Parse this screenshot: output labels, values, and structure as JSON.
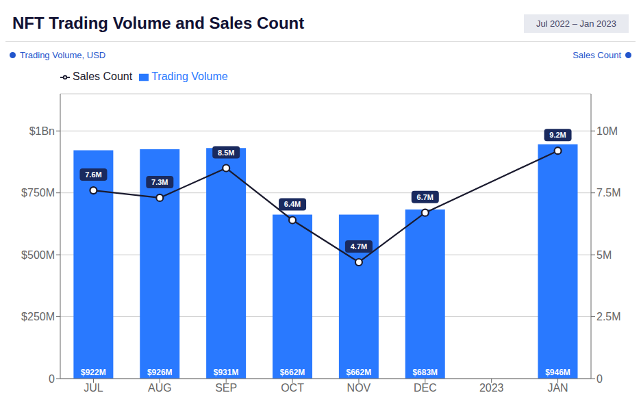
{
  "chart_data": {
    "type": "bar",
    "title": "NFT Trading Volume and Sales Count",
    "subtitle": "Jul 2022 – Jan 2023",
    "y_label": "Trading Volume, USD",
    "y2_label": "Sales Count",
    "categories": [
      "JUL",
      "AUG",
      "SEP",
      "OCT",
      "NOV",
      "DEC",
      "2023",
      "JAN"
    ],
    "series": [
      {
        "name": "Trading Volume",
        "type": "bar",
        "color": "#2979FF",
        "values": [
          922,
          926,
          931,
          662,
          662,
          683,
          null,
          946
        ],
        "value_labels": [
          "$922M",
          "$926M",
          "$931M",
          "$662M",
          "$662M",
          "$683M",
          null,
          "$946M"
        ],
        "data_labels": true
      },
      {
        "name": "Sales Count",
        "type": "line",
        "axis": "y2",
        "color": "#1a1a2e",
        "marker": "circle",
        "values": [
          7.6,
          7.3,
          8.5,
          6.4,
          4.7,
          6.7,
          null,
          9.2
        ],
        "value_labels": [
          "7.6M",
          "7.3M",
          "8.5M",
          "6.4M",
          "4.7M",
          "6.7M",
          null,
          "9.2M"
        ],
        "data_labels": true
      }
    ],
    "ylim": [
      0,
      1150
    ],
    "yticks": [
      0,
      {
        "value": 250,
        "label": "$250M"
      },
      {
        "value": 500,
        "label": "$500M"
      },
      {
        "value": 750,
        "label": "$750M"
      },
      {
        "value": 1000,
        "label": "$1Bn"
      }
    ],
    "y2lim": [
      0,
      11.5
    ],
    "y2ticks": [
      0,
      {
        "value": 2.5,
        "label": "2.5M"
      },
      {
        "value": 5,
        "label": "5M"
      },
      {
        "value": 7.5,
        "label": "7.5M"
      },
      {
        "value": 10,
        "label": "10M"
      }
    ],
    "grid": true,
    "legend": "top"
  }
}
